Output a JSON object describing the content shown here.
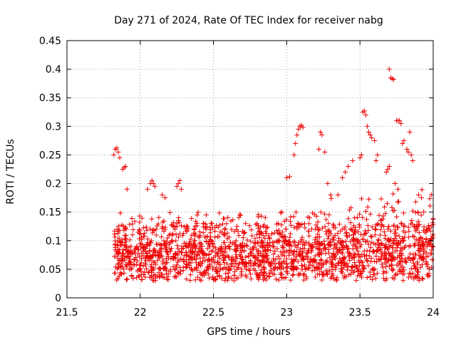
{
  "chart_data": {
    "type": "scatter",
    "title": "Day 271 of 2024, Rate Of TEC Index for receiver nabg",
    "xlabel": "GPS time / hours",
    "ylabel": "ROTI / TECUs",
    "xlim": [
      21.5,
      24
    ],
    "ylim": [
      0,
      0.45
    ],
    "x_ticks": [
      21.5,
      22,
      22.5,
      23,
      23.5,
      24
    ],
    "x_tick_labels": [
      "21.5",
      "22",
      "22.5",
      "23",
      "23.5",
      "24"
    ],
    "y_ticks": [
      0,
      0.05,
      0.1,
      0.15,
      0.2,
      0.25,
      0.3,
      0.35,
      0.4,
      0.45
    ],
    "y_tick_labels": [
      "0",
      "0.05",
      "0.1",
      "0.15",
      "0.2",
      "0.25",
      "0.3",
      "0.35",
      "0.4",
      "0.45"
    ],
    "grid": true,
    "marker": "+",
    "marker_color": "#ee0000",
    "series": [
      {
        "name": "ROTI",
        "points": [
          [
            21.82,
            0.25
          ],
          [
            21.83,
            0.26
          ],
          [
            21.84,
            0.262
          ],
          [
            21.85,
            0.255
          ],
          [
            21.86,
            0.245
          ],
          [
            21.88,
            0.225
          ],
          [
            21.89,
            0.228
          ],
          [
            21.9,
            0.23
          ],
          [
            21.91,
            0.19
          ],
          [
            22.05,
            0.19
          ],
          [
            22.07,
            0.2
          ],
          [
            22.08,
            0.205
          ],
          [
            22.09,
            0.2
          ],
          [
            22.1,
            0.195
          ],
          [
            22.15,
            0.18
          ],
          [
            22.17,
            0.175
          ],
          [
            22.25,
            0.195
          ],
          [
            22.26,
            0.2
          ],
          [
            22.27,
            0.205
          ],
          [
            22.28,
            0.19
          ],
          [
            23.05,
            0.25
          ],
          [
            23.06,
            0.27
          ],
          [
            23.07,
            0.285
          ],
          [
            23.08,
            0.295
          ],
          [
            23.09,
            0.3
          ],
          [
            23.1,
            0.302
          ],
          [
            23.11,
            0.298
          ],
          [
            23.0,
            0.21
          ],
          [
            23.02,
            0.212
          ],
          [
            23.22,
            0.26
          ],
          [
            23.23,
            0.29
          ],
          [
            23.24,
            0.285
          ],
          [
            23.26,
            0.255
          ],
          [
            23.28,
            0.2
          ],
          [
            23.3,
            0.18
          ],
          [
            23.35,
            0.18
          ],
          [
            23.38,
            0.21
          ],
          [
            23.4,
            0.22
          ],
          [
            23.42,
            0.23
          ],
          [
            23.45,
            0.24
          ],
          [
            23.5,
            0.245
          ],
          [
            23.51,
            0.25
          ],
          [
            23.52,
            0.325
          ],
          [
            23.53,
            0.327
          ],
          [
            23.54,
            0.32
          ],
          [
            23.55,
            0.3
          ],
          [
            23.56,
            0.29
          ],
          [
            23.57,
            0.285
          ],
          [
            23.58,
            0.28
          ],
          [
            23.6,
            0.275
          ],
          [
            23.61,
            0.24
          ],
          [
            23.62,
            0.25
          ],
          [
            23.7,
            0.4
          ],
          [
            23.71,
            0.385
          ],
          [
            23.72,
            0.383
          ],
          [
            23.73,
            0.382
          ],
          [
            23.75,
            0.31
          ],
          [
            23.76,
            0.31
          ],
          [
            23.77,
            0.31
          ],
          [
            23.78,
            0.305
          ],
          [
            23.79,
            0.27
          ],
          [
            23.8,
            0.275
          ],
          [
            23.82,
            0.26
          ],
          [
            23.83,
            0.255
          ],
          [
            23.84,
            0.29
          ],
          [
            23.85,
            0.25
          ],
          [
            23.86,
            0.24
          ],
          [
            23.68,
            0.22
          ],
          [
            23.69,
            0.225
          ],
          [
            23.7,
            0.23
          ],
          [
            23.74,
            0.2
          ],
          [
            23.76,
            0.19
          ],
          [
            23.9,
            0.18
          ],
          [
            23.92,
            0.175
          ]
        ]
      }
    ]
  }
}
